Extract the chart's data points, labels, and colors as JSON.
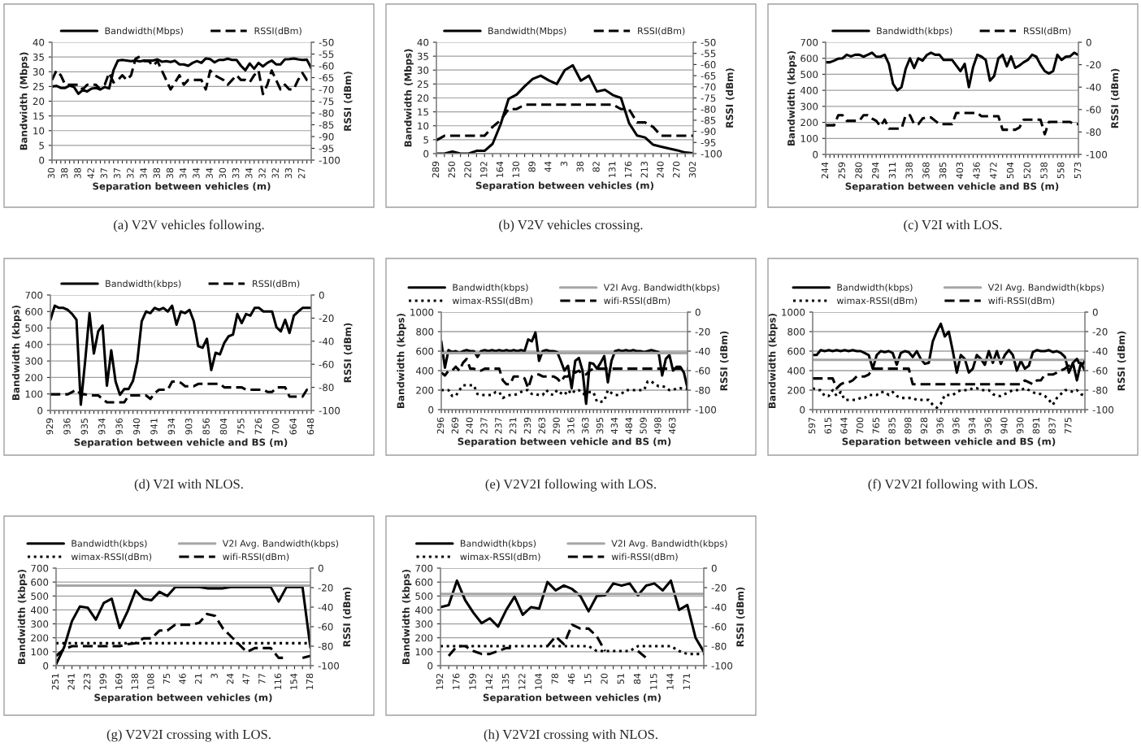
{
  "chart_data": [
    {
      "type": "line",
      "xlabel": "Separation between vehicles (m)",
      "ylabel": "Bandwidth (Mbps)",
      "y2label": "RSSI (dBm)",
      "grid": "y",
      "legend": "top",
      "annotations": [
        "(a) V2V vehicles following."
      ],
      "ylim": [
        0,
        40
      ],
      "yticks": [
        0,
        5,
        10,
        15,
        20,
        25,
        30,
        35,
        40
      ],
      "y2lim": [
        -100,
        -50
      ],
      "y2ticks": [
        -100,
        -95,
        -90,
        -85,
        -80,
        -75,
        -70,
        -65,
        -60,
        -55,
        -50
      ],
      "categories": [
        "30",
        null,
        null,
        "38",
        null,
        null,
        "38",
        null,
        null,
        "42",
        null,
        null,
        "37",
        null,
        null,
        "37",
        null,
        null,
        "32",
        null,
        null,
        "34",
        null,
        null,
        "38",
        null,
        null,
        "38",
        null,
        null,
        "34",
        null,
        null,
        "34",
        null,
        null,
        "34",
        null,
        null,
        "30",
        null,
        null,
        "33",
        null,
        null,
        "34",
        null,
        null,
        "32",
        null,
        null,
        "32",
        null,
        null,
        "33",
        null,
        null,
        "27",
        null,
        null
      ],
      "series": [
        {
          "name": "Bandwidth(Mbps)",
          "color": "#000000",
          "line_style": "solid",
          "values": [
            25,
            25.2,
            24.5,
            24.5,
            25.3,
            24.8,
            22.5,
            23.8,
            23.3,
            24.3,
            24.5,
            24,
            24.8,
            24.3,
            30.5,
            33.8,
            34,
            33.8,
            33.6,
            33.8,
            33.5,
            33.8,
            33.8,
            33.8,
            34.2,
            33.4,
            33.6,
            33.3,
            33.7,
            32.5,
            32.5,
            32,
            33,
            33.6,
            33,
            34.5,
            34.3,
            33.2,
            34,
            34,
            34.4,
            34,
            34,
            32,
            30.5,
            32.8,
            31,
            33,
            31.8,
            33,
            33.8,
            32.5,
            32.5,
            34.2,
            34.3,
            34.5,
            34.2,
            34,
            34.1,
            31.2
          ]
        },
        {
          "name": "RSSI(dBm)",
          "color": "#000000",
          "line_style": "dashed",
          "axis": "y2",
          "values": [
            -66,
            -62,
            -64,
            -68,
            -68,
            -68,
            -68,
            -70,
            -68,
            -68,
            -68,
            -70,
            -68,
            -63,
            -67,
            -66,
            -64,
            -66,
            -64,
            -57,
            -56,
            -58,
            -58,
            -60,
            -58,
            -62,
            -66,
            -70,
            -67,
            -64,
            -68,
            -66,
            -66,
            -66,
            -66,
            -70,
            -62,
            -64,
            -65,
            -66,
            -68,
            -66,
            -64,
            -66,
            -66,
            -67,
            -64,
            -62,
            -72,
            -68,
            -62,
            -66,
            -70,
            -68,
            -70,
            -70,
            -66,
            -63,
            -66,
            -66
          ]
        }
      ]
    },
    {
      "type": "line",
      "xlabel": "Separation between vehicles (m)",
      "ylabel": "Bandwidth (Mbps)",
      "y2label": "RSSI (dBm)",
      "grid": "y",
      "legend": "top",
      "annotations": [
        "(b) V2V vehicles crossing."
      ],
      "ylim": [
        0,
        40
      ],
      "yticks": [
        0,
        5,
        10,
        15,
        20,
        25,
        30,
        35,
        40
      ],
      "y2lim": [
        -100,
        -50
      ],
      "y2ticks": [
        -100,
        -95,
        -90,
        -85,
        -80,
        -75,
        -70,
        -65,
        -60,
        -55,
        -50
      ],
      "categories": [
        "289",
        null,
        "250",
        null,
        "220",
        null,
        "192",
        null,
        "164",
        null,
        "130",
        null,
        "89",
        null,
        "44",
        null,
        "3",
        null,
        "38",
        null,
        "82",
        null,
        "131",
        null,
        "176",
        null,
        "213",
        null,
        "240",
        null,
        "270",
        null,
        "302"
      ],
      "series": [
        {
          "name": "Bandwidth(Mbps)",
          "color": "#000000",
          "line_style": "solid",
          "values": [
            0,
            0,
            0.7,
            0,
            0,
            1,
            1,
            3.5,
            10.5,
            19.7,
            21.2,
            24.2,
            26.8,
            28,
            26.3,
            25,
            30,
            31.7,
            26.2,
            28,
            22.3,
            22.9,
            21,
            20,
            11,
            6.5,
            5.8,
            3.2,
            2.5,
            1.8,
            1.2,
            0.4,
            0.1
          ]
        },
        {
          "name": "RSSI(dBm)",
          "color": "#000000",
          "line_style": "dashed",
          "axis": "y2",
          "values": [
            -94,
            -92,
            -92,
            -92,
            -92,
            -92,
            -92,
            -88,
            -85,
            -80,
            -80,
            -78,
            -78,
            -78,
            -78,
            -78,
            -78,
            -78,
            -78,
            -78,
            -78,
            -78,
            -78,
            -80,
            -80,
            -86,
            -86,
            -88,
            -92,
            -92,
            -92,
            -92,
            -92
          ]
        }
      ]
    },
    {
      "type": "line",
      "xlabel": "Separation between vehicle and BS (m)",
      "ylabel": "Bandwidth (kbps)",
      "y2label": "RSSI (dBm)",
      "grid": "y",
      "legend": "top",
      "annotations": [
        "(c) V2I with LOS."
      ],
      "ylim": [
        0,
        700
      ],
      "yticks": [
        0,
        100,
        200,
        300,
        400,
        500,
        600,
        700
      ],
      "y2lim": [
        -100,
        0
      ],
      "y2ticks": [
        -100,
        -80,
        -60,
        -40,
        -20,
        0
      ],
      "categories": [
        "244",
        null,
        null,
        null,
        "259",
        null,
        null,
        null,
        "280",
        null,
        null,
        null,
        "294",
        null,
        null,
        null,
        "311",
        null,
        null,
        null,
        "338",
        null,
        null,
        null,
        "368",
        null,
        null,
        null,
        "385",
        null,
        null,
        null,
        "403",
        null,
        null,
        null,
        "436",
        null,
        null,
        null,
        "472",
        null,
        null,
        null,
        "504",
        null,
        null,
        null,
        "520",
        null,
        null,
        null,
        "538",
        null,
        null,
        null,
        "558",
        null,
        null,
        null,
        "573"
      ],
      "series": [
        {
          "name": "Bandwidth(kbps)",
          "color": "#000000",
          "line_style": "solid",
          "values": [
            575,
            575,
            585,
            598,
            600,
            622,
            612,
            622,
            622,
            610,
            622,
            635,
            610,
            610,
            622,
            565,
            440,
            400,
            420,
            535,
            600,
            540,
            600,
            585,
            620,
            635,
            622,
            622,
            590,
            590,
            590,
            555,
            520,
            565,
            420,
            545,
            622,
            610,
            590,
            460,
            490,
            600,
            622,
            550,
            612,
            540,
            555,
            575,
            590,
            622,
            610,
            560,
            520,
            505,
            520,
            622,
            590,
            610,
            612,
            635,
            620
          ]
        },
        {
          "name": "RSSI(dBm)",
          "color": "#000000",
          "line_style": "dashed",
          "axis": "y2",
          "values": [
            -74,
            -74,
            -74,
            -65,
            -65,
            -70,
            -70,
            -70,
            -70,
            -65,
            -65,
            -68,
            -70,
            -75,
            -69,
            -77,
            -77,
            -77,
            -77,
            -65,
            -65,
            -73,
            -73,
            -68,
            -67,
            -67,
            -70,
            -73,
            -73,
            -73,
            -73,
            -63,
            -63,
            -63,
            -63,
            -63,
            -63,
            -66,
            -66,
            -66,
            -66,
            -66,
            -78,
            -78,
            -78,
            -78,
            -76,
            -69,
            -69,
            -69,
            -69,
            -69,
            -82,
            -71,
            -71,
            -71,
            -71,
            -71,
            -71,
            -73,
            -73
          ]
        }
      ]
    },
    {
      "type": "line",
      "xlabel": "Separation between vehicle and BS (m)",
      "ylabel": "Bandwidth (kbps)",
      "y2label": "RSSI (dBm)",
      "grid": "y",
      "legend": "top",
      "annotations": [
        "(d) V2I with NLOS."
      ],
      "ylim": [
        0,
        700
      ],
      "yticks": [
        0,
        100,
        200,
        300,
        400,
        500,
        600,
        700
      ],
      "y2lim": [
        -100,
        0
      ],
      "y2ticks": [
        -100,
        -80,
        -60,
        -40,
        -20,
        0
      ],
      "categories": [
        "929",
        null,
        null,
        null,
        "936",
        null,
        null,
        null,
        "935",
        null,
        null,
        null,
        "934",
        null,
        null,
        null,
        "936",
        null,
        null,
        null,
        "940",
        null,
        null,
        null,
        "941",
        null,
        null,
        null,
        "934",
        null,
        null,
        null,
        "903",
        null,
        null,
        null,
        "856",
        null,
        null,
        null,
        "804",
        null,
        null,
        null,
        "755",
        null,
        null,
        null,
        "726",
        null,
        null,
        null,
        "700",
        null,
        null,
        null,
        "664",
        null,
        null,
        null,
        "648"
      ],
      "series": [
        {
          "name": "Bandwidth(kbps)",
          "color": "#000000",
          "line_style": "solid",
          "values": [
            550,
            635,
            622,
            622,
            610,
            585,
            550,
            35,
            300,
            590,
            345,
            480,
            515,
            150,
            365,
            175,
            95,
            130,
            130,
            180,
            300,
            540,
            600,
            590,
            622,
            610,
            622,
            600,
            635,
            520,
            600,
            590,
            610,
            540,
            390,
            380,
            435,
            245,
            350,
            340,
            410,
            450,
            460,
            585,
            530,
            585,
            575,
            622,
            622,
            600,
            600,
            600,
            505,
            480,
            550,
            470,
            575,
            600,
            622,
            622,
            622
          ]
        },
        {
          "name": "RSSI(dBm)",
          "color": "#000000",
          "line_style": "dashed",
          "axis": "y2",
          "values": [
            -86,
            -86,
            -86,
            -86,
            -86,
            -84,
            -82,
            -86,
            -86,
            -87,
            -87,
            -87,
            -90,
            -93,
            -93,
            -93,
            -93,
            -93,
            -87,
            -87,
            -87,
            -87,
            -87,
            -90,
            -85,
            -82,
            -82,
            -82,
            -75,
            -75,
            -76,
            -79,
            -79,
            -79,
            -77,
            -77,
            -77,
            -77,
            -77,
            -77,
            -80,
            -80,
            -80,
            -80,
            -80,
            -82,
            -82,
            -82,
            -82,
            -82,
            -84,
            -84,
            -80,
            -80,
            -80,
            -88,
            -88,
            -88,
            -88,
            -82,
            -82
          ]
        }
      ]
    },
    {
      "type": "line",
      "xlabel": "Separation between vehicle and BS (m)",
      "ylabel": "Bandwidth (kbps)",
      "y2label": "RSSI (dBm)",
      "grid": "y",
      "legend": "top",
      "annotations": [
        "(e) V2V2I following with LOS."
      ],
      "ylim": [
        0,
        1000
      ],
      "yticks": [
        0,
        200,
        400,
        600,
        800,
        1000
      ],
      "y2lim": [
        -100,
        0
      ],
      "y2ticks": [
        -100,
        -80,
        -60,
        -40,
        -20,
        0
      ],
      "categories": [
        "296",
        null,
        null,
        null,
        "269",
        null,
        null,
        null,
        "240",
        null,
        null,
        null,
        "237",
        null,
        null,
        null,
        "237",
        null,
        null,
        null,
        "231",
        null,
        null,
        null,
        "239",
        null,
        null,
        null,
        "263",
        null,
        null,
        null,
        "290",
        null,
        null,
        null,
        "316",
        null,
        null,
        null,
        "363",
        null,
        null,
        null,
        "395",
        null,
        null,
        null,
        "434",
        null,
        null,
        null,
        "484",
        null,
        null,
        null,
        "509",
        null,
        null,
        null,
        "498",
        null,
        null,
        null,
        "463",
        null,
        null,
        null,
        null
      ],
      "series": [
        {
          "name": "Bandwidth(kbps)",
          "color": "#000000",
          "line_style": "solid",
          "values": [
            700,
            430,
            610,
            590,
            600,
            580,
            600,
            610,
            600,
            600,
            540,
            600,
            610,
            600,
            610,
            600,
            610,
            600,
            610,
            600,
            610,
            600,
            610,
            600,
            720,
            700,
            790,
            500,
            600,
            610,
            600,
            600,
            590,
            500,
            400,
            450,
            220,
            500,
            530,
            400,
            60,
            480,
            470,
            420,
            480,
            550,
            280,
            500,
            600,
            610,
            600,
            610,
            600,
            610,
            600,
            600,
            590,
            600,
            610,
            600,
            590,
            350,
            520,
            560,
            400,
            440,
            440,
            380,
            220
          ]
        },
        {
          "name": "wimax-RSSI(dBm)",
          "color": "#000000",
          "line_style": "dotted",
          "axis": "y2",
          "values": [
            -80,
            -80,
            -80,
            -86,
            -86,
            -80,
            -75,
            -75,
            -75,
            -75,
            -84,
            -85,
            -85,
            -85,
            -85,
            -82,
            -82,
            -88,
            -86,
            -85,
            -85,
            -84,
            -82,
            -80,
            -80,
            -84,
            -84,
            -85,
            -85,
            -80,
            -84,
            -85,
            -80,
            -83,
            -85,
            -80,
            -84,
            -80,
            -80,
            -84,
            -84,
            -82,
            -82,
            -92,
            -92,
            -91,
            -80,
            -83,
            -85,
            -85,
            -83,
            -80,
            -80,
            -80,
            -80,
            -80,
            -80,
            -71,
            -71,
            -74,
            -76,
            -76,
            -77,
            -80,
            -80,
            -78,
            -78,
            -79,
            -79
          ]
        },
        {
          "name": "V2I Avg. Bandwidth(kbps)",
          "color": "#a6a6a6",
          "line_style": "solid",
          "values": [
            580,
            580,
            580,
            580,
            580,
            580,
            580,
            580,
            580,
            580,
            580,
            580,
            580,
            580,
            580,
            580,
            580,
            580,
            580,
            580,
            580,
            580,
            580,
            580,
            580,
            580,
            580,
            580,
            580,
            580,
            580,
            580,
            580,
            580,
            580,
            580,
            580,
            580,
            580,
            580,
            580,
            580,
            580,
            580,
            580,
            580,
            580,
            580,
            580,
            580,
            580,
            580,
            580,
            580,
            580,
            580,
            580,
            580,
            580,
            580,
            580,
            580,
            580,
            580,
            580,
            580,
            580,
            580,
            580
          ]
        },
        {
          "name": "wifi-RSSI(dBm)",
          "color": "#000000",
          "line_style": "dashed",
          "axis": "y2",
          "values": [
            -62,
            -65,
            -60,
            -60,
            -56,
            -60,
            -52,
            -48,
            -58,
            -58,
            -60,
            -60,
            -58,
            -58,
            -58,
            -58,
            -58,
            -70,
            -74,
            -74,
            -66,
            -66,
            -66,
            -68,
            -78,
            -66,
            -64,
            -64,
            -66,
            -66,
            -66,
            -66,
            -68,
            -72,
            -66,
            -66,
            -60,
            -62,
            -60,
            -64,
            -64,
            -60,
            -58,
            -58,
            -58,
            -58,
            -58,
            -58,
            -58,
            -58,
            -58,
            -58,
            -58,
            -58,
            -58,
            -58,
            -58,
            -58,
            -58,
            -58,
            -58,
            -58,
            -58,
            -58,
            -58,
            -58,
            -58,
            -58,
            -58
          ]
        }
      ]
    },
    {
      "type": "line",
      "xlabel": "Separation between vehicle and BS (m)",
      "ylabel": "Bandwidth (kbps)",
      "y2label": "RSSI (dBm)",
      "grid": "y",
      "legend": "top",
      "annotations": [
        "(f) V2V2I following with LOS."
      ],
      "ylim": [
        0,
        1000
      ],
      "yticks": [
        0,
        200,
        400,
        600,
        800,
        1000
      ],
      "y2lim": [
        -100,
        0
      ],
      "y2ticks": [
        -100,
        -80,
        -60,
        -40,
        -20,
        0
      ],
      "categories": [
        "597",
        null,
        null,
        null,
        "615",
        null,
        null,
        null,
        "644",
        null,
        null,
        null,
        "700",
        null,
        null,
        null,
        "765",
        null,
        null,
        null,
        "835",
        null,
        null,
        null,
        "898",
        null,
        null,
        null,
        "928",
        null,
        null,
        null,
        "936",
        null,
        null,
        null,
        "936",
        null,
        null,
        null,
        "934",
        null,
        null,
        null,
        "936",
        null,
        null,
        null,
        "940",
        null,
        null,
        null,
        "930",
        null,
        null,
        null,
        "891",
        null,
        null,
        null,
        "837",
        null,
        null,
        null,
        "775",
        null,
        null,
        null,
        null
      ],
      "series": [
        {
          "name": "Bandwidth(kbps)",
          "color": "#000000",
          "line_style": "solid",
          "values": [
            560,
            560,
            610,
            600,
            610,
            600,
            610,
            600,
            610,
            600,
            610,
            600,
            600,
            580,
            560,
            420,
            560,
            600,
            590,
            600,
            580,
            460,
            580,
            600,
            590,
            540,
            600,
            520,
            470,
            480,
            700,
            800,
            880,
            750,
            800,
            600,
            380,
            560,
            520,
            380,
            420,
            560,
            520,
            460,
            600,
            480,
            600,
            470,
            560,
            610,
            560,
            400,
            500,
            420,
            450,
            590,
            610,
            600,
            600,
            610,
            590,
            600,
            580,
            540,
            380,
            480,
            300,
            480,
            400
          ]
        },
        {
          "name": "wimax-RSSI(dBm)",
          "color": "#000000",
          "line_style": "dotted",
          "axis": "y2",
          "values": [
            -78,
            -80,
            -80,
            -86,
            -86,
            -80,
            -86,
            -82,
            -90,
            -90,
            -90,
            -90,
            -88,
            -88,
            -85,
            -85,
            -85,
            -82,
            -82,
            -85,
            -82,
            -86,
            -88,
            -88,
            -88,
            -88,
            -90,
            -90,
            -90,
            -90,
            -95,
            -98,
            -94,
            -85,
            -85,
            -85,
            -82,
            -80,
            -80,
            -80,
            -78,
            -78,
            -80,
            -80,
            -80,
            -84,
            -86,
            -86,
            -84,
            -82,
            -80,
            -80,
            -80,
            -78,
            -80,
            -82,
            -84,
            -84,
            -86,
            -90,
            -95,
            -88,
            -84,
            -80,
            -80,
            -82,
            -80,
            -84,
            -86
          ]
        },
        {
          "name": "V2I Avg. Bandwidth(kbps)",
          "color": "#a6a6a6",
          "line_style": "solid",
          "values": [
            510,
            510,
            510,
            510,
            510,
            510,
            510,
            510,
            510,
            510,
            510,
            510,
            510,
            510,
            510,
            510,
            510,
            510,
            510,
            510,
            510,
            510,
            510,
            510,
            510,
            510,
            510,
            510,
            510,
            510,
            510,
            510,
            510,
            510,
            510,
            510,
            510,
            510,
            510,
            510,
            510,
            510,
            510,
            510,
            510,
            510,
            510,
            510,
            510,
            510,
            510,
            510,
            510,
            510,
            510,
            510,
            510,
            510,
            510,
            510,
            510,
            510,
            510,
            510,
            510,
            510,
            510,
            510,
            510
          ]
        },
        {
          "name": "wifi-RSSI(dBm)",
          "color": "#000000",
          "line_style": "dashed",
          "axis": "y2",
          "values": [
            -68,
            -68,
            -68,
            -68,
            -68,
            -68,
            -78,
            -74,
            -72,
            -72,
            -70,
            -66,
            -66,
            -66,
            -64,
            -58,
            -58,
            -58,
            -58,
            -58,
            -58,
            -58,
            -58,
            -58,
            -58,
            -74,
            -74,
            -74,
            -74,
            -74,
            -74,
            -74,
            -74,
            -74,
            -74,
            -74,
            -74,
            -74,
            -74,
            -74,
            -74,
            -74,
            -74,
            -74,
            -74,
            -74,
            -74,
            -74,
            -74,
            -74,
            -74,
            -74,
            -74,
            -70,
            -72,
            -74,
            -70,
            -70,
            -64,
            -64,
            -64,
            -62,
            -60,
            -58,
            -55,
            -52,
            -48,
            -56,
            -50
          ]
        }
      ]
    },
    {
      "type": "line",
      "xlabel": "Separation between vehicles (m)",
      "ylabel": "Bandwidth (kbps)",
      "y2label": "RSSI (dBm)",
      "grid": "y",
      "legend": "top",
      "annotations": [
        "(g) V2V2I crossing with LOS."
      ],
      "ylim": [
        0,
        700
      ],
      "yticks": [
        0,
        100,
        200,
        300,
        400,
        500,
        600,
        700
      ],
      "y2lim": [
        -100,
        0
      ],
      "y2ticks": [
        -100,
        -80,
        -60,
        -40,
        -20,
        0
      ],
      "categories": [
        "251",
        null,
        "241",
        null,
        "223",
        null,
        "199",
        null,
        "169",
        null,
        "138",
        null,
        "108",
        null,
        "75",
        null,
        "46",
        null,
        "21",
        null,
        "3",
        null,
        "24",
        null,
        "47",
        null,
        "77",
        null,
        "116",
        null,
        "154",
        null,
        "178"
      ],
      "series": [
        {
          "name": "Bandwidth(kbps)",
          "color": "#000000",
          "line_style": "solid",
          "values": [
            10,
            130,
            320,
            425,
            415,
            330,
            450,
            480,
            270,
            390,
            540,
            480,
            470,
            530,
            500,
            565,
            565,
            565,
            565,
            555,
            555,
            555,
            565,
            565,
            565,
            565,
            565,
            565,
            460,
            565,
            565,
            565,
            130
          ]
        },
        {
          "name": "wimax-RSSI(dBm)",
          "color": "#000000",
          "line_style": "dotted",
          "axis": "y2",
          "values": [
            -77,
            -77,
            -77,
            -77,
            -77,
            -77,
            -77,
            -77,
            -77,
            -77,
            -77,
            -77,
            -77,
            -77,
            -77,
            -77,
            -77,
            -77,
            -77,
            -77,
            -77,
            -77,
            -77,
            -77,
            -77,
            -77,
            -77,
            -77,
            -77,
            -77,
            -77,
            -77,
            -77
          ]
        },
        {
          "name": "V2I Avg. Bandwidth(kbps)",
          "color": "#a6a6a6",
          "line_style": "solid",
          "values": [
            575,
            575,
            575,
            575,
            575,
            575,
            575,
            575,
            575,
            575,
            575,
            575,
            575,
            575,
            575,
            575,
            575,
            575,
            575,
            575,
            575,
            575,
            575,
            575,
            575,
            575,
            575,
            575,
            575,
            575,
            575,
            575,
            575
          ]
        },
        {
          "name": "wifi-RSSI(dBm)",
          "color": "#000000",
          "line_style": "dashed",
          "axis": "y2",
          "values": [
            -90,
            -83,
            -80,
            -80,
            -80,
            -80,
            -80,
            -80,
            -80,
            -78,
            -77,
            -72,
            -72,
            -64,
            -64,
            -58,
            -58,
            -58,
            -56,
            -47,
            -49,
            -62,
            -70,
            -78,
            -86,
            -82,
            -82,
            -82,
            -92,
            -92,
            null,
            -92,
            -90
          ]
        }
      ]
    },
    {
      "type": "line",
      "xlabel": "Separation between vehicles (m)",
      "ylabel": "Bandwidth (kbps)",
      "y2label": "RSSI (dBm)",
      "grid": "y",
      "legend": "top",
      "annotations": [
        "(h) V2V2I crossing with NLOS."
      ],
      "ylim": [
        0,
        700
      ],
      "yticks": [
        0,
        100,
        200,
        300,
        400,
        500,
        600,
        700
      ],
      "y2lim": [
        -100,
        0
      ],
      "y2ticks": [
        -100,
        -80,
        -60,
        -40,
        -20,
        0
      ],
      "categories": [
        "192",
        null,
        "176",
        null,
        "159",
        null,
        "142",
        null,
        "135",
        null,
        "122",
        null,
        "104",
        null,
        "78",
        null,
        "46",
        null,
        "15",
        null,
        "20",
        null,
        "51",
        null,
        "84",
        null,
        "115",
        null,
        "144",
        null,
        "171",
        null,
        null
      ],
      "series": [
        {
          "name": "Bandwidth(kbps)",
          "color": "#000000",
          "line_style": "solid",
          "values": [
            420,
            435,
            610,
            470,
            380,
            305,
            340,
            280,
            400,
            495,
            365,
            420,
            410,
            600,
            540,
            575,
            550,
            500,
            390,
            500,
            505,
            590,
            575,
            590,
            505,
            575,
            590,
            540,
            610,
            400,
            435,
            200,
            100
          ]
        },
        {
          "name": "wimax-RSSI(dBm)",
          "color": "#000000",
          "line_style": "dotted",
          "axis": "y2",
          "values": [
            -80,
            -80,
            -80,
            -80,
            -80,
            -80,
            -80,
            -80,
            -80,
            -80,
            -80,
            -80,
            -80,
            -80,
            -80,
            -80,
            -80,
            -80,
            -80,
            -85,
            -85,
            -85,
            -85,
            -85,
            -80,
            -80,
            -80,
            -80,
            -80,
            -85,
            -88,
            -88,
            -88
          ]
        },
        {
          "name": "V2I Avg. Bandwidth(kbps)",
          "color": "#a6a6a6",
          "line_style": "solid",
          "values": [
            515,
            515,
            515,
            515,
            515,
            515,
            515,
            515,
            515,
            515,
            515,
            515,
            515,
            515,
            515,
            515,
            515,
            515,
            515,
            515,
            515,
            515,
            515,
            515,
            515,
            515,
            515,
            515,
            515,
            515,
            515,
            515,
            515
          ]
        },
        {
          "name": "wifi-RSSI(dBm)",
          "color": "#000000",
          "line_style": "dashed",
          "axis": "y2",
          "values": [
            null,
            -90,
            -80,
            -80,
            -85,
            -88,
            -88,
            -85,
            -82,
            -82,
            null,
            null,
            null,
            -80,
            -70,
            -78,
            -58,
            -62,
            -62,
            -70,
            -85,
            null,
            null,
            null,
            -85,
            -92,
            null,
            null,
            null,
            null,
            null,
            null,
            null
          ]
        }
      ]
    }
  ]
}
